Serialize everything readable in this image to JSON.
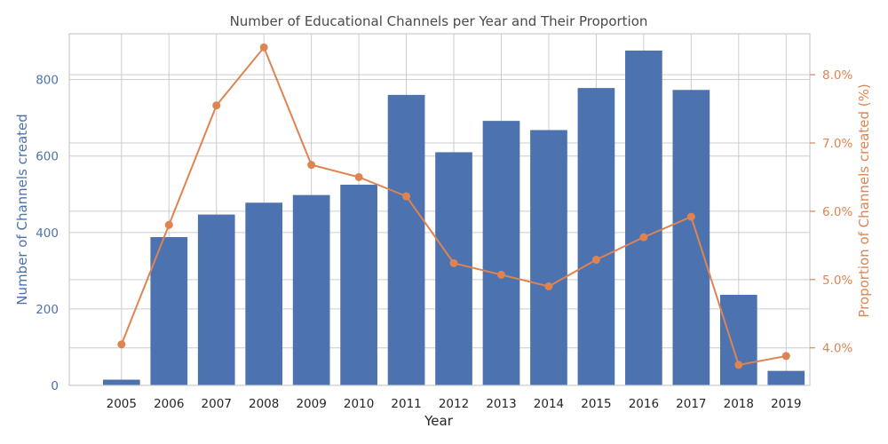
{
  "chart_data": {
    "type": "bar+line",
    "title": "Number of Educational Channels per Year and Their Proportion",
    "xlabel": "Year",
    "ylabel_left": "Number of Channels created",
    "ylabel_right": "Proportion of Channels created (%)",
    "categories": [
      "2005",
      "2006",
      "2007",
      "2008",
      "2009",
      "2010",
      "2011",
      "2012",
      "2013",
      "2014",
      "2015",
      "2016",
      "2017",
      "2018",
      "2019"
    ],
    "series": [
      {
        "type": "bar",
        "axis": "left",
        "color": "#4c72b0",
        "values": [
          15,
          388,
          447,
          478,
          498,
          525,
          760,
          610,
          692,
          668,
          778,
          876,
          773,
          237,
          38
        ]
      },
      {
        "type": "line",
        "axis": "right",
        "color": "#dd8452",
        "values": [
          4.05,
          5.8,
          7.55,
          8.4,
          6.68,
          6.5,
          6.22,
          5.24,
          5.07,
          4.9,
          5.29,
          5.62,
          5.92,
          3.75,
          3.88
        ]
      }
    ],
    "ylim_left": [
      0,
      920
    ],
    "ylim_right": [
      3.45,
      8.6
    ],
    "yticks_left": [
      0,
      200,
      400,
      600,
      800
    ],
    "yticks_right": [
      4.0,
      5.0,
      6.0,
      7.0,
      8.0
    ],
    "ytick_labels_right": [
      "4.0%",
      "5.0%",
      "6.0%",
      "7.0%",
      "8.0%"
    ],
    "grid": true
  }
}
